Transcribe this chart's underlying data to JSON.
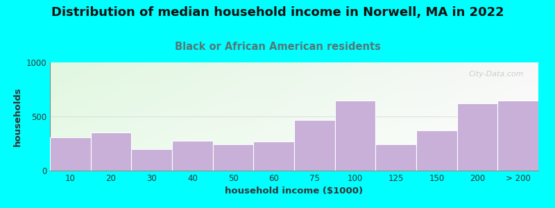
{
  "title": "Distribution of median household income in Norwell, MA in 2022",
  "subtitle": "Black or African American residents",
  "xlabel": "household income ($1000)",
  "ylabel": "households",
  "bar_color": "#c8b0d8",
  "background_outer": "#00FFFF",
  "categories": [
    "10",
    "20",
    "30",
    "40",
    "50",
    "60",
    "75",
    "100",
    "125",
    "150",
    "200",
    "> 200"
  ],
  "values": [
    310,
    355,
    200,
    275,
    245,
    270,
    465,
    650,
    245,
    375,
    620,
    650
  ],
  "ylim": [
    0,
    1000
  ],
  "yticks": [
    0,
    500,
    1000
  ],
  "title_fontsize": 13,
  "subtitle_fontsize": 10.5,
  "axis_label_fontsize": 9.5,
  "tick_fontsize": 8.5,
  "watermark": "City-Data.com",
  "subtitle_color": "#557777",
  "title_color": "#111111",
  "gradient_topleft": [
    0.88,
    0.97,
    0.88,
    1.0
  ],
  "gradient_topright": [
    0.97,
    0.97,
    0.97,
    1.0
  ],
  "gradient_bottomleft": [
    0.92,
    0.98,
    0.92,
    1.0
  ],
  "gradient_bottomright": [
    1.0,
    1.0,
    1.0,
    1.0
  ]
}
